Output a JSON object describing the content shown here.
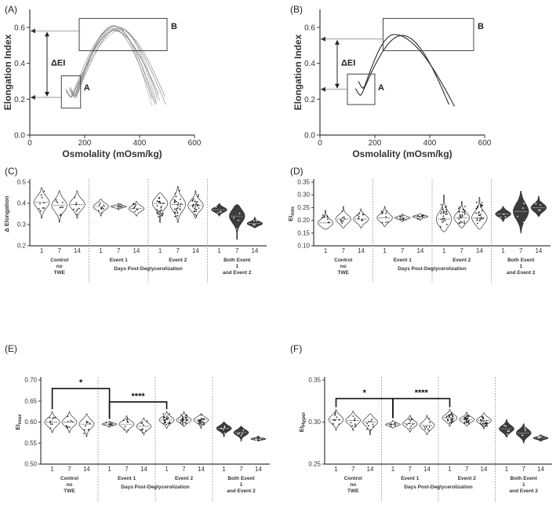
{
  "chart_data": [
    {
      "id": "A",
      "panel_label": "(A)",
      "type": "line",
      "xlabel": "Osmolality (mOsm/kg)",
      "ylabel": "Elongation  Index",
      "xlim": [
        0,
        600
      ],
      "ylim": [
        0,
        0.7
      ],
      "xticks": [
        0,
        200,
        400,
        600
      ],
      "yticks": [
        0.0,
        0.2,
        0.4,
        0.6
      ],
      "ytick_labels": [
        "0.0",
        "0.2",
        "0.4",
        "0.6"
      ],
      "xtick_labels": [
        "0",
        "200",
        "400",
        "600"
      ],
      "box_a_label": "A",
      "box_b_label": "B",
      "delta_label": "ΔEI",
      "series_count": 10
    },
    {
      "id": "B",
      "panel_label": "(B)",
      "type": "line",
      "xlabel": "Osmolality (mOsm/kg)",
      "ylabel": "Elongation  Index",
      "xlim": [
        0,
        600
      ],
      "ylim": [
        0,
        0.7
      ],
      "xticks": [
        0,
        200,
        400,
        600
      ],
      "yticks": [
        0.0,
        0.2,
        0.4,
        0.6
      ],
      "ytick_labels": [
        "0.0",
        "0.2",
        "0.4",
        "0.6"
      ],
      "xtick_labels": [
        "0",
        "200",
        "400",
        "600"
      ],
      "box_a_label": "A",
      "box_b_label": "B",
      "delta_label": "ΔEI",
      "series_count": 2
    },
    {
      "id": "C",
      "panel_label": "(C)",
      "type": "violin",
      "ylabel": "Δ Elongation",
      "xlabel": "Days Post-Deglycerolization",
      "ylim": [
        0.2,
        0.5
      ],
      "yticks": [
        0.2,
        0.3,
        0.4,
        0.5
      ],
      "ytick_labels": [
        "0.2",
        "0.3",
        "0.4",
        "0.5"
      ],
      "day_labels": [
        "1",
        "7",
        "14"
      ],
      "groups": [
        {
          "label_lines": [
            "Control",
            "no",
            "TWE"
          ],
          "medians": [
            0.405,
            0.39,
            0.395
          ],
          "ranges": [
            [
              0.33,
              0.475
            ],
            [
              0.31,
              0.46
            ],
            [
              0.33,
              0.46
            ]
          ],
          "dark": false
        },
        {
          "label_lines": [
            "Event 1"
          ],
          "medians": [
            0.385,
            0.385,
            0.375
          ],
          "ranges": [
            [
              0.34,
              0.42
            ],
            [
              0.37,
              0.4
            ],
            [
              0.34,
              0.41
            ]
          ],
          "dark": false
        },
        {
          "label_lines": [
            "Event 2"
          ],
          "medians": [
            0.4,
            0.395,
            0.39
          ],
          "ranges": [
            [
              0.31,
              0.45
            ],
            [
              0.31,
              0.48
            ],
            [
              0.33,
              0.46
            ]
          ],
          "dark": false
        },
        {
          "label_lines": [
            "Both Event",
            "1",
            "and Event 2"
          ],
          "medians": [
            0.37,
            0.34,
            0.305
          ],
          "ranges": [
            [
              0.34,
              0.4
            ],
            [
              0.23,
              0.395
            ],
            [
              0.285,
              0.335
            ]
          ],
          "dark": true
        }
      ]
    },
    {
      "id": "D",
      "panel_label": "(D)",
      "type": "violin",
      "ylabel": "EImin",
      "ylabel_main": "EI",
      "ylabel_sub": "min",
      "xlabel": "Days Post-Deglycerolization",
      "ylim": [
        0.1,
        0.35
      ],
      "yticks": [
        0.1,
        0.15,
        0.2,
        0.25,
        0.3,
        0.35
      ],
      "ytick_labels": [
        "0.10",
        "0.15",
        "0.20",
        "0.25",
        "0.30",
        "0.35"
      ],
      "day_labels": [
        "1",
        "7",
        "14"
      ],
      "groups": [
        {
          "label_lines": [
            "Control",
            "no",
            "TWE"
          ],
          "medians": [
            0.19,
            0.205,
            0.205
          ],
          "ranges": [
            [
              0.165,
              0.24
            ],
            [
              0.17,
              0.255
            ],
            [
              0.17,
              0.245
            ]
          ],
          "dark": false
        },
        {
          "label_lines": [
            "Event 1"
          ],
          "medians": [
            0.21,
            0.21,
            0.215
          ],
          "ranges": [
            [
              0.175,
              0.255
            ],
            [
              0.195,
              0.225
            ],
            [
              0.2,
              0.225
            ]
          ],
          "dark": false
        },
        {
          "label_lines": [
            "Event 2"
          ],
          "medians": [
            0.205,
            0.21,
            0.21
          ],
          "ranges": [
            [
              0.155,
              0.3
            ],
            [
              0.17,
              0.275
            ],
            [
              0.165,
              0.29
            ]
          ],
          "dark": false
        },
        {
          "label_lines": [
            "Both Event",
            "1",
            "and Event 2"
          ],
          "medians": [
            0.225,
            0.235,
            0.25
          ],
          "ranges": [
            [
              0.195,
              0.255
            ],
            [
              0.15,
              0.315
            ],
            [
              0.215,
              0.295
            ]
          ],
          "dark": true
        }
      ]
    },
    {
      "id": "E",
      "panel_label": "(E)",
      "type": "violin",
      "ylabel": "EImax",
      "ylabel_main": "EI",
      "ylabel_sub": "max",
      "xlabel": "Days Post-Deglycerolization",
      "ylim": [
        0.5,
        0.7
      ],
      "yticks": [
        0.5,
        0.55,
        0.6,
        0.65,
        0.7
      ],
      "ytick_labels": [
        "0.50",
        "0.55",
        "0.60",
        "0.65",
        "0.70"
      ],
      "day_labels": [
        "1",
        "7",
        "14"
      ],
      "groups": [
        {
          "label_lines": [
            "Control",
            "no",
            "TWE"
          ],
          "medians": [
            0.6,
            0.6,
            0.595
          ],
          "ranges": [
            [
              0.575,
              0.625
            ],
            [
              0.575,
              0.625
            ],
            [
              0.565,
              0.62
            ]
          ],
          "dark": false
        },
        {
          "label_lines": [
            "Event 1"
          ],
          "medians": [
            0.595,
            0.595,
            0.59
          ],
          "ranges": [
            [
              0.588,
              0.602
            ],
            [
              0.575,
              0.615
            ],
            [
              0.57,
              0.61
            ]
          ],
          "dark": false
        },
        {
          "label_lines": [
            "Event 2"
          ],
          "medians": [
            0.605,
            0.605,
            0.605
          ],
          "ranges": [
            [
              0.585,
              0.625
            ],
            [
              0.59,
              0.625
            ],
            [
              0.585,
              0.62
            ]
          ],
          "dark": false
        },
        {
          "label_lines": [
            "Both Event",
            "1",
            "and Event 2"
          ],
          "medians": [
            0.585,
            0.575,
            0.56
          ],
          "ranges": [
            [
              0.565,
              0.6
            ],
            [
              0.555,
              0.59
            ],
            [
              0.555,
              0.567
            ]
          ],
          "dark": true
        }
      ],
      "significance": [
        {
          "label": "*",
          "from": [
            0,
            0
          ],
          "to": [
            1,
            0
          ],
          "level": 0.68
        },
        {
          "label": "****",
          "from": [
            1,
            0
          ],
          "to": [
            2,
            0
          ],
          "level": 0.648
        }
      ]
    },
    {
      "id": "F",
      "panel_label": "(F)",
      "type": "violin",
      "ylabel": "EIHyper",
      "ylabel_main": "EI",
      "ylabel_sub": "Hyper",
      "xlabel": "Days Post-Deglycerolization",
      "ylim": [
        0.25,
        0.35
      ],
      "yticks": [
        0.25,
        0.3,
        0.35
      ],
      "ytick_labels": [
        "0.25",
        "0.30",
        "0.35"
      ],
      "day_labels": [
        "1",
        "7",
        "14"
      ],
      "groups": [
        {
          "label_lines": [
            "Control",
            "no",
            "TWE"
          ],
          "medians": [
            0.303,
            0.302,
            0.3
          ],
          "ranges": [
            [
              0.29,
              0.315
            ],
            [
              0.29,
              0.313
            ],
            [
              0.285,
              0.31
            ]
          ],
          "dark": false
        },
        {
          "label_lines": [
            "Event 1"
          ],
          "medians": [
            0.297,
            0.298,
            0.296
          ],
          "ranges": [
            [
              0.293,
              0.302
            ],
            [
              0.288,
              0.308
            ],
            [
              0.285,
              0.308
            ]
          ],
          "dark": false
        },
        {
          "label_lines": [
            "Event 2"
          ],
          "medians": [
            0.305,
            0.303,
            0.302
          ],
          "ranges": [
            [
              0.295,
              0.315
            ],
            [
              0.295,
              0.312
            ],
            [
              0.292,
              0.311
            ]
          ],
          "dark": false
        },
        {
          "label_lines": [
            "Both Event",
            "1",
            "and Event 2"
          ],
          "medians": [
            0.292,
            0.287,
            0.281
          ],
          "ranges": [
            [
              0.282,
              0.303
            ],
            [
              0.275,
              0.298
            ],
            [
              0.277,
              0.285
            ]
          ],
          "dark": true
        }
      ],
      "significance": [
        {
          "label": "*",
          "from": [
            0,
            0
          ],
          "to": [
            1,
            0
          ],
          "level": 0.328
        },
        {
          "label": "****",
          "from": [
            1,
            0
          ],
          "to": [
            2,
            0
          ],
          "level": 0.328
        }
      ]
    }
  ]
}
